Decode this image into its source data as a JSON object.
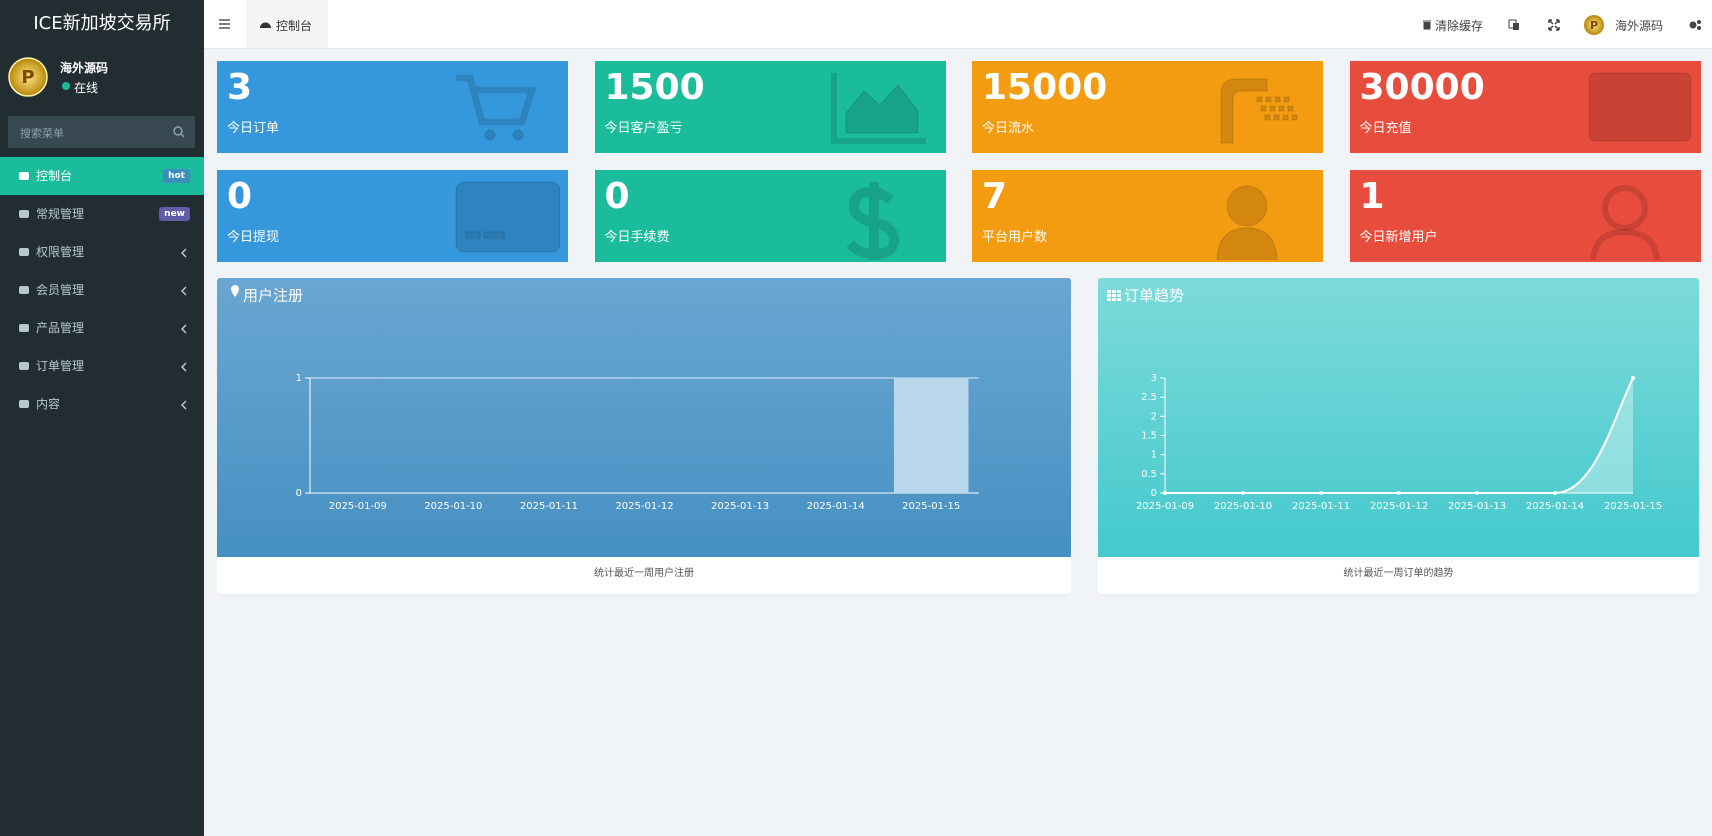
{
  "sidebar": {
    "brand": "ICE新加坡交易所",
    "user": {
      "name": "海外源码",
      "status": "在线"
    },
    "search_placeholder": "搜索菜单",
    "menu": [
      {
        "label": "控制台",
        "badge": "hot"
      },
      {
        "label": "常规管理",
        "badge": "new"
      },
      {
        "label": "权限管理"
      },
      {
        "label": "会员管理"
      },
      {
        "label": "产品管理"
      },
      {
        "label": "订单管理"
      },
      {
        "label": "内容"
      }
    ]
  },
  "header": {
    "tab": "控制台",
    "clear_cache": "清除缓存",
    "user": "海外源码"
  },
  "stats": [
    {
      "value": 3,
      "label": "今日订单",
      "color": "#3598dc"
    },
    {
      "value": 1500,
      "label": "今日客户盈亏",
      "color": "#1bbc9b"
    },
    {
      "value": 15000,
      "label": "今日流水",
      "color": "#f39c12"
    },
    {
      "value": 30000,
      "label": "今日充值",
      "color": "#e74c3c"
    },
    {
      "value": 0,
      "label": "今日提现",
      "color": "#3598dc"
    },
    {
      "value": 0,
      "label": "今日手续费",
      "color": "#1bbc9b"
    },
    {
      "value": 7,
      "label": "平台用户数",
      "color": "#f39c12"
    },
    {
      "value": 1,
      "label": "今日新增用户",
      "color": "#e74c3c"
    }
  ],
  "chart_data": [
    {
      "type": "bar",
      "title": "用户注册",
      "footer": "统计最近一周用户注册",
      "categories": [
        "2025-01-09",
        "2025-01-10",
        "2025-01-11",
        "2025-01-12",
        "2025-01-13",
        "2025-01-14",
        "2025-01-15"
      ],
      "values": [
        0,
        0,
        0,
        0,
        0,
        0,
        1
      ],
      "color": "#b9d7ea",
      "ylim": [
        0,
        1
      ],
      "yticks": [
        0,
        1
      ],
      "grid": true
    },
    {
      "type": "line",
      "title": "订单趋势",
      "footer": "统计最近一周订单的趋势",
      "categories": [
        "2025-01-09",
        "2025-01-10",
        "2025-01-11",
        "2025-01-12",
        "2025-01-13",
        "2025-01-14",
        "2025-01-15"
      ],
      "values": [
        0,
        0,
        0,
        0,
        0,
        0,
        3
      ],
      "color": "#ffffff",
      "ylim": [
        0,
        3
      ],
      "yticks": [
        0,
        0.5,
        1,
        1.5,
        2,
        2.5,
        3
      ],
      "grid": false
    }
  ]
}
